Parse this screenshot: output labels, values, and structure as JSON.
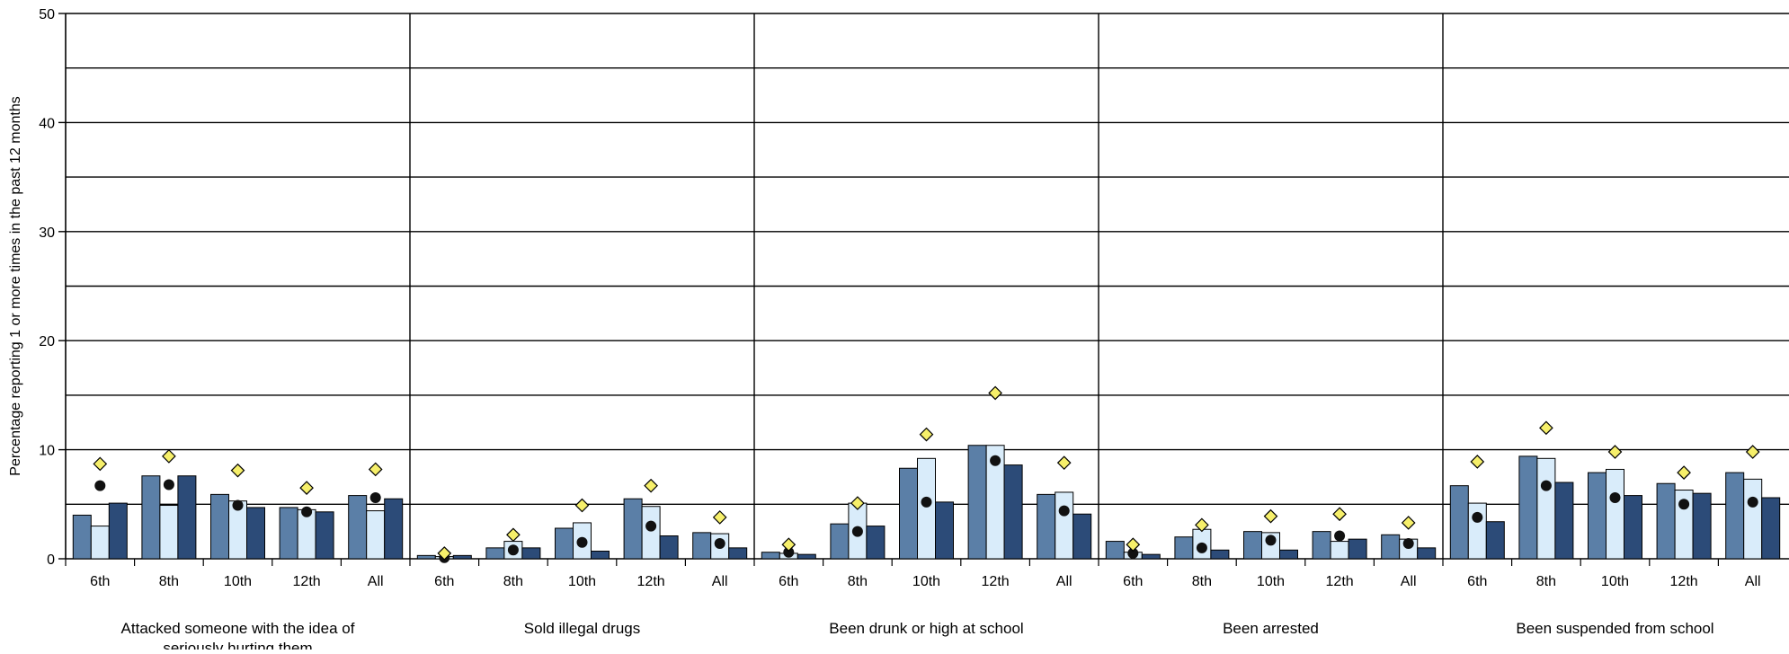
{
  "chart_data": {
    "type": "bar",
    "ylabel": "Percentage reporting 1 or more times in the past 12 months",
    "ylim": [
      0,
      50
    ],
    "yticks": [
      0,
      10,
      20,
      30,
      40,
      50
    ],
    "grid": true,
    "grades": [
      "6th",
      "8th",
      "10th",
      "12th",
      "All"
    ],
    "groups": [
      {
        "label_lines": [
          "Attacked someone with the idea of",
          "seriously hurting them"
        ],
        "bars": [
          [
            4.0,
            3.0,
            5.1
          ],
          [
            7.6,
            4.9,
            7.6
          ],
          [
            5.9,
            5.3,
            4.7
          ],
          [
            4.7,
            4.5,
            4.3
          ],
          [
            5.8,
            4.4,
            5.5
          ]
        ],
        "circles": [
          6.7,
          6.8,
          4.9,
          4.3,
          5.6
        ],
        "diamonds": [
          8.7,
          9.4,
          8.1,
          6.5,
          8.2
        ]
      },
      {
        "label_lines": [
          "Sold illegal drugs"
        ],
        "bars": [
          [
            0.3,
            0.2,
            0.3
          ],
          [
            1.0,
            1.6,
            1.0
          ],
          [
            2.8,
            3.3,
            0.7
          ],
          [
            5.5,
            4.8,
            2.1
          ],
          [
            2.4,
            2.3,
            1.0
          ]
        ],
        "circles": [
          0.1,
          0.8,
          1.5,
          3.0,
          1.4
        ],
        "diamonds": [
          0.5,
          2.2,
          4.9,
          6.7,
          3.8
        ]
      },
      {
        "label_lines": [
          "Been drunk or high at school"
        ],
        "bars": [
          [
            0.6,
            0.5,
            0.4
          ],
          [
            3.2,
            5.1,
            3.0
          ],
          [
            8.3,
            9.2,
            5.2
          ],
          [
            10.4,
            10.4,
            8.6
          ],
          [
            5.9,
            6.1,
            4.1
          ]
        ],
        "circles": [
          0.6,
          2.5,
          5.2,
          9.0,
          4.4
        ],
        "diamonds": [
          1.3,
          5.1,
          11.4,
          15.2,
          8.8
        ]
      },
      {
        "label_lines": [
          "Been arrested"
        ],
        "bars": [
          [
            1.6,
            0.6,
            0.4
          ],
          [
            2.0,
            2.7,
            0.8
          ],
          [
            2.5,
            2.4,
            0.8
          ],
          [
            2.5,
            1.6,
            1.8
          ],
          [
            2.2,
            1.8,
            1.0
          ]
        ],
        "circles": [
          0.5,
          1.0,
          1.7,
          2.1,
          1.4
        ],
        "diamonds": [
          1.3,
          3.1,
          3.9,
          4.1,
          3.3
        ]
      },
      {
        "label_lines": [
          "Been suspended from school"
        ],
        "bars": [
          [
            6.7,
            5.1,
            3.4
          ],
          [
            9.4,
            9.2,
            7.0
          ],
          [
            7.9,
            8.2,
            5.8
          ],
          [
            6.9,
            6.3,
            6.0
          ],
          [
            7.9,
            7.3,
            5.6
          ]
        ],
        "circles": [
          3.8,
          6.7,
          5.6,
          5.0,
          5.2
        ],
        "diamonds": [
          8.9,
          12.0,
          9.8,
          7.9,
          9.8
        ]
      }
    ],
    "colors": {
      "bar1": "#5b7fa7",
      "bar2": "#d9ecfa",
      "bar3": "#2c4b78",
      "diamond": "#f6ef6a",
      "circle": "#111111",
      "grid": "#000000"
    }
  }
}
